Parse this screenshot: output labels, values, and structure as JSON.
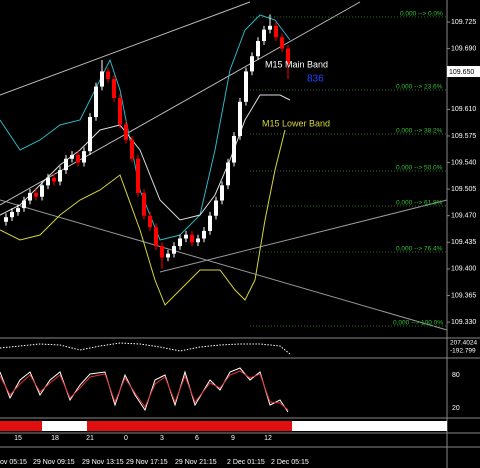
{
  "chart_data": {
    "type": "candlestick",
    "open": [
      109.462,
      109.468,
      109.475,
      109.48,
      109.49,
      109.5,
      109.495,
      109.51,
      109.52,
      109.515,
      109.53,
      109.545,
      109.55,
      109.54,
      109.555,
      109.6,
      109.64,
      109.66,
      109.65,
      109.625,
      109.59,
      109.57,
      109.545,
      109.5,
      109.47,
      109.455,
      109.43,
      109.415,
      109.42,
      109.43,
      109.44,
      109.445,
      109.435,
      109.44,
      109.45,
      109.47,
      109.49,
      109.51,
      109.54,
      109.575,
      109.62,
      109.66,
      109.68,
      109.7,
      109.715,
      109.72,
      109.705,
      109.69
    ],
    "high": [
      109.473,
      109.48,
      109.485,
      109.495,
      109.505,
      109.505,
      109.515,
      109.525,
      109.525,
      109.535,
      109.55,
      109.555,
      109.555,
      109.56,
      109.605,
      109.645,
      109.675,
      109.665,
      109.655,
      109.63,
      109.595,
      109.575,
      109.55,
      109.505,
      109.475,
      109.46,
      109.435,
      109.425,
      109.435,
      109.445,
      109.45,
      109.45,
      109.445,
      109.455,
      109.475,
      109.495,
      109.515,
      109.545,
      109.58,
      109.625,
      109.665,
      109.685,
      109.705,
      109.72,
      109.735,
      109.725,
      109.71,
      109.695
    ],
    "low": [
      109.457,
      109.463,
      109.47,
      109.475,
      109.485,
      109.49,
      109.49,
      109.505,
      109.51,
      109.51,
      109.525,
      109.54,
      109.535,
      109.535,
      109.55,
      109.595,
      109.635,
      109.645,
      109.62,
      109.585,
      109.565,
      109.54,
      109.495,
      109.465,
      109.45,
      109.425,
      109.4,
      109.41,
      109.415,
      109.425,
      109.435,
      109.43,
      109.43,
      109.435,
      109.445,
      109.465,
      109.485,
      109.505,
      109.535,
      109.57,
      109.615,
      109.655,
      109.675,
      109.695,
      109.71,
      109.7,
      109.685,
      109.65
    ],
    "close": [
      109.468,
      109.475,
      109.48,
      109.49,
      109.5,
      109.495,
      109.51,
      109.52,
      109.515,
      109.53,
      109.545,
      109.55,
      109.54,
      109.555,
      109.6,
      109.64,
      109.66,
      109.65,
      109.625,
      109.59,
      109.57,
      109.545,
      109.5,
      109.47,
      109.455,
      109.43,
      109.415,
      109.42,
      109.43,
      109.44,
      109.445,
      109.435,
      109.44,
      109.45,
      109.47,
      109.49,
      109.51,
      109.54,
      109.575,
      109.62,
      109.66,
      109.68,
      109.7,
      109.715,
      109.72,
      109.705,
      109.69,
      109.67
    ],
    "up_color": "#ffffff",
    "down_color": "#ff0000",
    "ylim": [
      109.309,
      109.754
    ],
    "yticks": [
      109.725,
      {
        "value": 109.69,
        "label": "109.690"
      },
      {
        "value": 109.61,
        "label": "109.610"
      },
      109.575,
      {
        "value": 109.54,
        "label": "109.540"
      },
      109.505,
      {
        "value": 109.47,
        "label": "109.470"
      },
      109.435,
      {
        "value": 109.4,
        "label": "109.400"
      },
      109.365,
      {
        "value": 109.33,
        "label": "109.330"
      }
    ],
    "annotations": [
      "M15 Main Band",
      "836",
      "M15 Lower Band"
    ]
  },
  "price_box": "109.650",
  "fib_labels": [
    "0.000 --> 0.0%",
    "0.000 --> 23.6%",
    "0.000 --> 38.2%",
    "0.000 --> 50.0%",
    "0.000 --> 61.8%",
    "0.000 --> 76.4%",
    "0.000 --> 100.0%"
  ],
  "indicator_labels": [
    "207.4024",
    "-192.799",
    "80",
    "20"
  ],
  "hour_labels": [
    "15",
    "18",
    "21",
    "0",
    "3",
    "6",
    "9",
    "12"
  ],
  "time_labels": [
    "ov 05:15",
    "29 Nov 09:15",
    "29 Nov 13:15",
    "29 Nov 17:15",
    "29 Nov 21:15",
    "2 Dec 01:15",
    "2 Dec 05:15"
  ]
}
